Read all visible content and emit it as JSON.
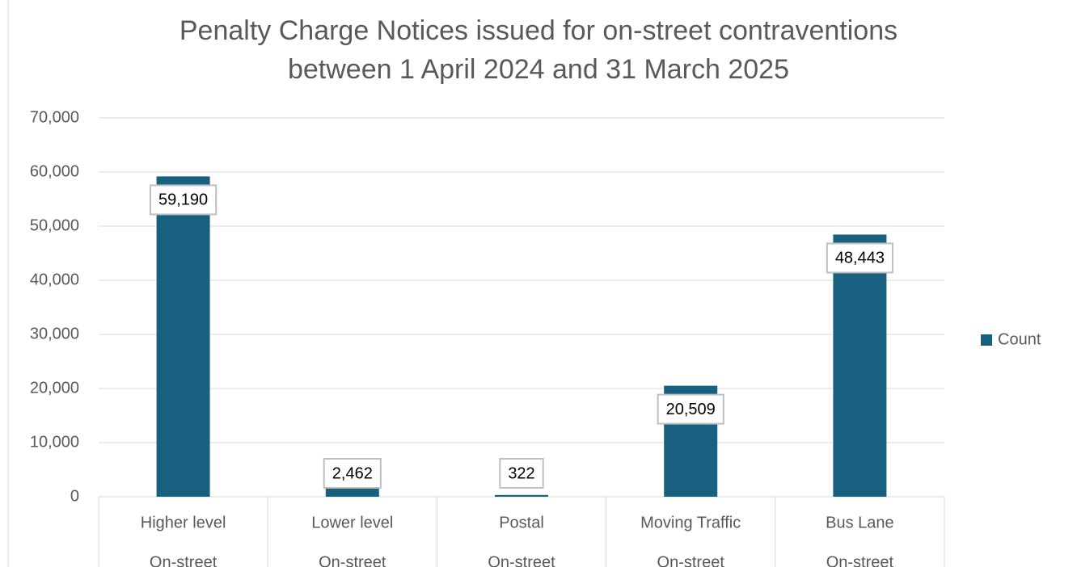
{
  "chart_data": {
    "type": "bar",
    "title": [
      "Penalty Charge Notices issued for on-street contraventions",
      "between 1 April 2024 and 31 March 2025"
    ],
    "categories": [
      "Higher level",
      "Lower level",
      "Postal",
      "Moving Traffic",
      "Bus Lane"
    ],
    "category_groups": [
      "On-street",
      "On-street",
      "On-street",
      "On-street",
      "On-street"
    ],
    "series": [
      {
        "name": "Count",
        "color": "#17607f",
        "values": [
          59190,
          2462,
          322,
          20509,
          48443
        ],
        "value_labels": [
          "59,190",
          "2,462",
          "322",
          "20,509",
          "48,443"
        ]
      }
    ],
    "ylim": [
      0,
      70000
    ],
    "yticks": [
      0,
      {
        "value": 10000,
        "label": "10,000"
      },
      {
        "value": 20000,
        "label": "20,000"
      },
      {
        "value": 30000,
        "label": "30,000"
      },
      {
        "value": 40000,
        "label": "40,000"
      },
      {
        "value": 50000,
        "label": "50,000"
      },
      {
        "value": 60000,
        "label": "60,000"
      },
      {
        "value": 70000,
        "label": "70,000"
      }
    ],
    "grid": true,
    "legend": "right"
  }
}
